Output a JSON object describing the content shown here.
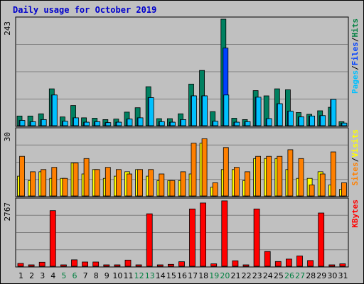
{
  "chart_data": {
    "type": "bar",
    "title": "Daily usage for October 2019",
    "days": [
      1,
      2,
      3,
      4,
      5,
      6,
      7,
      8,
      9,
      10,
      11,
      12,
      13,
      14,
      15,
      16,
      17,
      18,
      19,
      20,
      21,
      22,
      23,
      24,
      25,
      26,
      27,
      28,
      29,
      30,
      31
    ],
    "weekend_days": [
      5,
      6,
      12,
      13,
      19,
      20,
      26,
      27
    ],
    "panels": [
      {
        "name": "pages-files-hits",
        "ymax_label": "243",
        "ymax": 243,
        "legend": [
          {
            "text": "Pages",
            "color": "#00c0ff"
          },
          {
            "text": "/",
            "color": "#000000"
          },
          {
            "text": "Files",
            "color": "#0040ff"
          },
          {
            "text": "/",
            "color": "#000000"
          },
          {
            "text": "Hits",
            "color": "#008040"
          }
        ],
        "series": [
          {
            "name": "Hits",
            "color": "#008060",
            "values": [
              22,
              22,
              27,
              84,
              20,
              46,
              18,
              17,
              14,
              15,
              31,
              41,
              89,
              16,
              16,
              27,
              95,
              126,
              32,
              243,
              17,
              14,
              80,
              68,
              84,
              82,
              30,
              26,
              34,
              42,
              9
            ]
          },
          {
            "name": "Files",
            "color": "#0040ff",
            "values": [
              12,
              9,
              14,
              70,
              10,
              18,
              8,
              9,
              7,
              8,
              15,
              18,
              64,
              9,
              8,
              14,
              68,
              68,
              10,
              177,
              8,
              9,
              65,
              16,
              50,
              33,
              20,
              22,
              23,
              60,
              6
            ]
          },
          {
            "name": "Pages",
            "color": "#00c0ff",
            "values": [
              12,
              9,
              14,
              70,
              10,
              18,
              8,
              9,
              7,
              8,
              15,
              18,
              64,
              9,
              8,
              14,
              68,
              68,
              10,
              70,
              8,
              9,
              65,
              16,
              50,
              33,
              20,
              22,
              23,
              60,
              6
            ]
          }
        ]
      },
      {
        "name": "sites-visits",
        "ymax_label": "30",
        "ymax": 30,
        "legend": [
          {
            "text": "Sites",
            "color": "#ff8000"
          },
          {
            "text": "/",
            "color": "#000000"
          },
          {
            "text": "Visits",
            "color": "#ffff00"
          }
        ],
        "series": [
          {
            "name": "Visits",
            "color": "#ffff00",
            "values": [
              9,
              7,
              11,
              8,
              8,
              15,
              10,
              12,
              8,
              9,
              11,
              12,
              9,
              7,
              7,
              7,
              10,
              24,
              4,
              12,
              12,
              7,
              17,
              17,
              17,
              12,
              8,
              8,
              11,
              5,
              3
            ]
          },
          {
            "name": "Sites",
            "color": "#ff8000",
            "values": [
              18,
              11,
              12,
              13,
              8,
              15,
              17,
              12,
              13,
              12,
              10,
              12,
              12,
              10,
              7,
              11,
              24,
              26,
              6,
              22,
              13,
              11,
              18,
              18,
              18,
              21,
              17,
              5,
              10,
              20,
              6
            ]
          }
        ]
      },
      {
        "name": "kbytes",
        "ymax_label": "2767",
        "ymax": 2767,
        "legend": [
          {
            "text": "KBytes",
            "color": "#ff0000"
          }
        ],
        "series": [
          {
            "name": "KBytes",
            "color": "#ff0000",
            "values": [
              120,
              40,
              170,
              2330,
              30,
              270,
              180,
              180,
              60,
              50,
              260,
              60,
              2200,
              60,
              80,
              190,
              2400,
              2650,
              100,
              2740,
              230,
              40,
              2400,
              620,
              200,
              300,
              430,
              240,
              2230,
              50,
              100
            ]
          }
        ]
      }
    ]
  }
}
